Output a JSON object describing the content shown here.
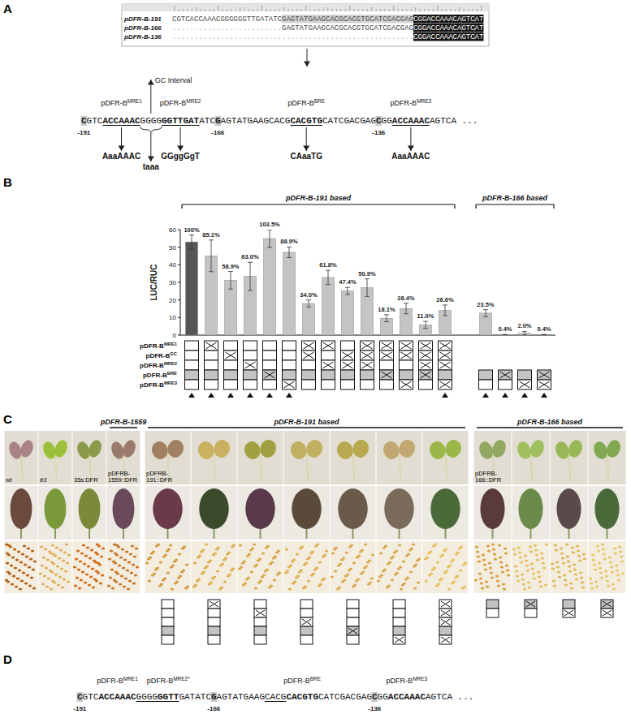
{
  "panel_labels": [
    "A",
    "B",
    "C",
    "D"
  ],
  "alignment": {
    "rows": [
      {
        "name": "pDFR-B-191",
        "seq": "CGTCACCAAACGGGGGGTTGATATCGAGTATGAAGCACGCACGTGCATCGACGAGCGGACCAAACAGTCAT"
      },
      {
        "name": "pDFR-B-166",
        "seq": ".........................GAGTATGAAGCACGCACGTGCATCGACGAGCGGACCAAACAGTCAT"
      },
      {
        "name": "pDFR-B-136",
        "seq": ".......................................................CGGACCAAACAGTCAT"
      }
    ]
  },
  "annotated_sequence": {
    "segments": [
      {
        "text": "C",
        "style": "shade",
        "position": "-191"
      },
      {
        "text": "GTC",
        "style": "plain"
      },
      {
        "text": "ACCAAAC",
        "style": "bold-underline",
        "label": {
          "base": "pDFR-B",
          "sup": "MRE1"
        },
        "mutation": "AaaAAAC"
      },
      {
        "text": "GGGG",
        "style": "plain",
        "note_above": "GC Interval",
        "mutation": "taaa"
      },
      {
        "text": "GGTTGAT",
        "style": "bold-underline",
        "label": {
          "base": "pDFR-B",
          "sup": "MRE2"
        },
        "mutation": "GGggGgT"
      },
      {
        "text": "ATC",
        "style": "plain"
      },
      {
        "text": "G",
        "style": "shade",
        "position": "-166"
      },
      {
        "text": "AGTATGAAGCACG",
        "style": "plain"
      },
      {
        "text": "CACGTG",
        "style": "bold-underline",
        "label": {
          "base": "pDFR-B",
          "sup": "BRE"
        },
        "mutation": "CAaaTG"
      },
      {
        "text": "CATCGACGAG",
        "style": "plain"
      },
      {
        "text": "C",
        "style": "shade",
        "position": "-136"
      },
      {
        "text": "GG",
        "style": "plain"
      },
      {
        "text": "ACCAAAC",
        "style": "bold-underline",
        "label": {
          "base": "pDFR-B",
          "sup": "MRE3"
        },
        "mutation": "AaaAAAC"
      },
      {
        "text": "AGTCA ...",
        "style": "plain"
      }
    ]
  },
  "chart_data": {
    "type": "bar",
    "y_label": "LUC/RUC",
    "categories": [
      null,
      null,
      null,
      null,
      null,
      null,
      null,
      null,
      null,
      null,
      null,
      null,
      null,
      null,
      null,
      null,
      null,
      null
    ],
    "values": [
      53.0,
      45.1,
      31.2,
      33.4,
      54.9,
      47.1,
      18.0,
      32.8,
      25.1,
      27.0,
      9.6,
      15.1,
      5.8,
      14.1,
      12.5,
      0.2,
      1.1,
      0.2
    ],
    "errors": [
      4.0,
      9.0,
      5.0,
      8.0,
      5.0,
      3.0,
      2.0,
      4.0,
      2.0,
      5.0,
      2.0,
      3.0,
      2.0,
      3.0,
      2.0,
      0.2,
      1.0,
      0.2
    ],
    "percent_labels": [
      "100%",
      "85.1%",
      "58.9%",
      "63.0%",
      "103.5%",
      "88.9%",
      "34.0%",
      "61.8%",
      "47.4%",
      "50.9%",
      "18.1%",
      "28.4%",
      "11.0%",
      "26.6%",
      "23.5%",
      "0.4%",
      "2.0%",
      "0.4%"
    ],
    "colors": [
      "#555555",
      "#c4c4c4",
      "#c4c4c4",
      "#c4c4c4",
      "#c4c4c4",
      "#c4c4c4",
      "#c4c4c4",
      "#c4c4c4",
      "#c4c4c4",
      "#c4c4c4",
      "#c4c4c4",
      "#c4c4c4",
      "#c4c4c4",
      "#c4c4c4",
      "#c4c4c4",
      "#c4c4c4",
      "#c4c4c4",
      "#c4c4c4"
    ],
    "ylim": [
      0,
      60
    ],
    "yticks": [
      0,
      10,
      20,
      30,
      40,
      50,
      60
    ],
    "groups": [
      {
        "label": "pDFR-B-191 based",
        "size": 14
      },
      {
        "label": "pDFR-B-166 based",
        "size": 4
      }
    ],
    "matrix": {
      "rows": [
        {
          "base": "pDFR-B",
          "sup": "MRE1",
          "shaded": false
        },
        {
          "base": "pDFR-B",
          "sup": "GC",
          "shaded": false
        },
        {
          "base": "pDFR-B",
          "sup": "MRE2",
          "shaded": false
        },
        {
          "base": "pDFR-B",
          "sup": "BRE",
          "shaded": true
        },
        {
          "base": "pDFR-B",
          "sup": "MRE3",
          "shaded": false
        }
      ],
      "cells": [
        [
          0,
          0,
          0,
          0,
          0
        ],
        [
          1,
          0,
          0,
          0,
          0
        ],
        [
          0,
          1,
          0,
          0,
          0
        ],
        [
          0,
          0,
          1,
          0,
          0
        ],
        [
          0,
          0,
          0,
          1,
          0
        ],
        [
          0,
          0,
          0,
          0,
          1
        ],
        [
          1,
          1,
          0,
          0,
          0
        ],
        [
          1,
          0,
          1,
          0,
          0
        ],
        [
          0,
          1,
          1,
          0,
          0
        ],
        [
          1,
          1,
          1,
          0,
          0
        ],
        [
          1,
          1,
          0,
          1,
          0
        ],
        [
          1,
          1,
          0,
          0,
          1
        ],
        [
          1,
          1,
          1,
          1,
          0
        ],
        [
          1,
          1,
          1,
          0,
          1
        ],
        [
          null,
          null,
          null,
          0,
          0
        ],
        [
          null,
          null,
          null,
          1,
          0
        ],
        [
          null,
          null,
          null,
          0,
          1
        ],
        [
          null,
          null,
          null,
          1,
          1
        ]
      ]
    },
    "selected": [
      true,
      true,
      true,
      true,
      true,
      true,
      false,
      false,
      false,
      false,
      false,
      false,
      false,
      true,
      true,
      true,
      true,
      true
    ]
  },
  "photos": {
    "groups": [
      {
        "columns": [
          {
            "label_lines": [
              "wt"
            ],
            "italic": false,
            "colors": {
              "seedling": "#a88486",
              "leaf": "#6b4a3e",
              "seeds": "#b5651d"
            }
          },
          {
            "label_lines": [
              "tt3"
            ],
            "italic": true,
            "colors": {
              "seedling": "#9bbf3a",
              "leaf": "#7a9a3a",
              "seeds": "#e0b060"
            }
          },
          {
            "label_lines": [
              "35s:DFR"
            ],
            "italic": false,
            "colors": {
              "seedling": "#8a9a4a",
              "leaf": "#7a8a3a",
              "seeds": "#d2701e"
            }
          }
        ]
      },
      {
        "header": "pDFR-B-1559",
        "columns": [
          {
            "label_lines": [
              "pDFRB-",
              "1559::DFR"
            ],
            "italic": false,
            "colors": {
              "seedling": "#9a7a6a",
              "leaf": "#6a4a5a",
              "seeds": "#c8782a"
            }
          }
        ]
      },
      {
        "header": "pDFR-B-191 based",
        "columns": [
          {
            "label_lines": [
              "pDFRB-",
              "191::DFR"
            ],
            "italic": false,
            "colors": {
              "seedling": "#a08060",
              "leaf": "#6a3a4a",
              "seeds": "#d49a40"
            }
          },
          {
            "label_lines": [],
            "italic": false,
            "colors": {
              "seedling": "#c8b060",
              "leaf": "#3a4a2a",
              "seeds": "#e0b050"
            }
          },
          {
            "label_lines": [],
            "italic": false,
            "colors": {
              "seedling": "#a0a040",
              "leaf": "#5a3a4a",
              "seeds": "#d8a848"
            }
          },
          {
            "label_lines": [],
            "italic": false,
            "colors": {
              "seedling": "#c0b060",
              "leaf": "#5a4a3a",
              "seeds": "#e0b050"
            }
          },
          {
            "label_lines": [],
            "italic": false,
            "colors": {
              "seedling": "#b8a850",
              "leaf": "#6a5a4a",
              "seeds": "#dcaa50"
            }
          },
          {
            "label_lines": [],
            "italic": false,
            "colors": {
              "seedling": "#c0a870",
              "leaf": "#7a6a5a",
              "seeds": "#d8a850"
            }
          },
          {
            "label_lines": [],
            "italic": false,
            "colors": {
              "seedling": "#9ab848",
              "leaf": "#4a6a3a",
              "seeds": "#e8c060"
            }
          }
        ],
        "matrix": {
          "shaded": [
            false,
            false,
            false,
            true,
            false
          ],
          "cells": [
            [
              0,
              0,
              0,
              0,
              0
            ],
            [
              1,
              0,
              0,
              0,
              0
            ],
            [
              0,
              1,
              0,
              0,
              0
            ],
            [
              0,
              0,
              1,
              0,
              0
            ],
            [
              0,
              0,
              0,
              1,
              0
            ],
            [
              0,
              0,
              0,
              0,
              1
            ],
            [
              1,
              1,
              1,
              0,
              1
            ]
          ]
        }
      },
      {
        "header": "pDFR-B-166 based",
        "columns": [
          {
            "label_lines": [
              "pDFRB-",
              "166::DFR"
            ],
            "italic": false,
            "colors": {
              "seedling": "#90a860",
              "leaf": "#5a3a3a",
              "seeds": "#d8a040"
            }
          },
          {
            "label_lines": [],
            "italic": false,
            "colors": {
              "seedling": "#a0c060",
              "leaf": "#6a8a4a",
              "seeds": "#e8c060"
            }
          },
          {
            "label_lines": [],
            "italic": false,
            "colors": {
              "seedling": "#98b858",
              "leaf": "#5a4a4a",
              "seeds": "#e0b858"
            }
          },
          {
            "label_lines": [],
            "italic": false,
            "colors": {
              "seedling": "#80a850",
              "leaf": "#4a6a3a",
              "seeds": "#e8c868"
            }
          }
        ],
        "matrix": {
          "shaded": [
            false,
            false,
            false,
            true,
            false
          ],
          "cells": [
            [
              null,
              null,
              null,
              0,
              0
            ],
            [
              null,
              null,
              null,
              1,
              0
            ],
            [
              null,
              null,
              null,
              0,
              1
            ],
            [
              null,
              null,
              null,
              1,
              1
            ]
          ]
        }
      }
    ]
  },
  "final_sequence": {
    "segments": [
      {
        "text": "C",
        "style": "shade",
        "position": "-191"
      },
      {
        "text": "GTC",
        "style": "plain"
      },
      {
        "text": "ACCAAAC",
        "style": "bold",
        "label": {
          "base": "pDFR-B",
          "sup": "MRE1"
        }
      },
      {
        "text": "GGGG",
        "style": "underline"
      },
      {
        "text": "GGTT",
        "style": "bold-underline",
        "label": {
          "base": "pDFR-B",
          "sup": "MRE2*"
        }
      },
      {
        "text": "GATATC",
        "style": "plain"
      },
      {
        "text": "G",
        "style": "shade",
        "position": "-166"
      },
      {
        "text": "AGTATGAAG",
        "style": "plain"
      },
      {
        "text": "CACG",
        "style": "underline"
      },
      {
        "text": "CACGTG",
        "style": "bold",
        "label": {
          "base": "pDFR-B",
          "sup": "BRE"
        }
      },
      {
        "text": "CATCGACGAG",
        "style": "plain"
      },
      {
        "text": "C",
        "style": "shade",
        "position": "-136"
      },
      {
        "text": "GG",
        "style": "plain"
      },
      {
        "text": "ACCAAAC",
        "style": "bold",
        "label": {
          "base": "pDFR-B",
          "sup": "MRE3"
        }
      },
      {
        "text": "AGTCA ...",
        "style": "plain"
      }
    ]
  }
}
